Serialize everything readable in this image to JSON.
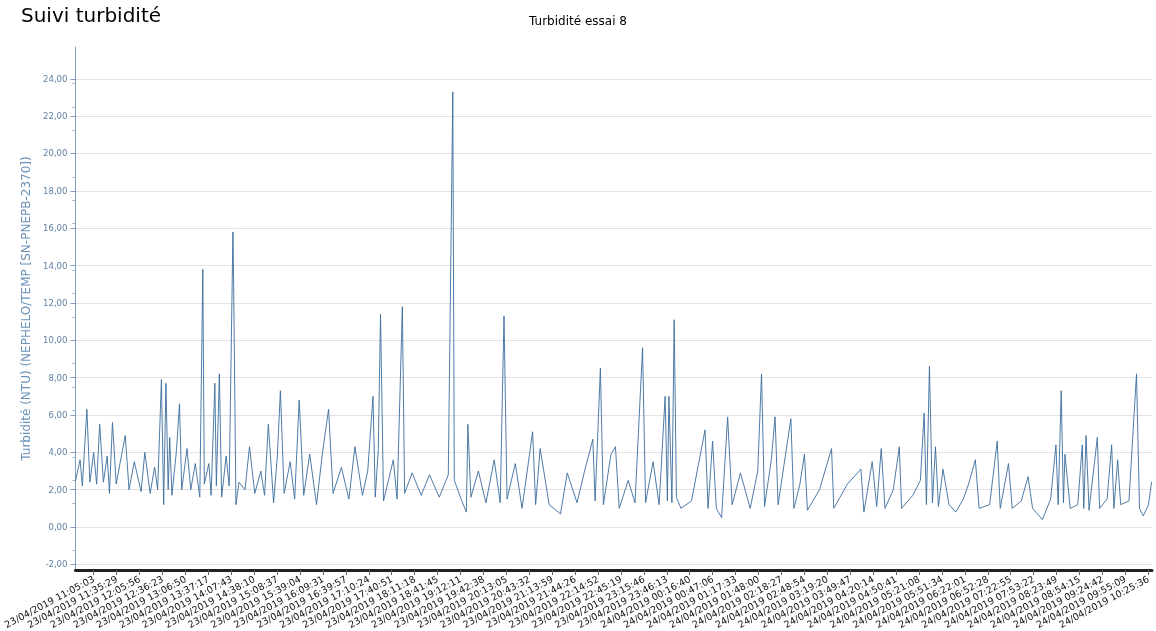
{
  "chart_data": {
    "type": "line",
    "title": "Suivi turbidité",
    "subtitle": "Turbidité essai 8",
    "ylabel": "Turbidité (NTU) (NEPHELO/TEMP [SN-PNEPB-2370])",
    "x": [
      "2019-04-23T10:41",
      "2019-04-23T10:47",
      "2019-04-23T10:50",
      "2019-04-23T10:56",
      "2019-04-23T11:00",
      "2019-04-23T11:05",
      "2019-04-23T11:09",
      "2019-04-23T11:13",
      "2019-04-23T11:18",
      "2019-04-23T11:23",
      "2019-04-23T11:26",
      "2019-04-23T11:30",
      "2019-04-23T11:35",
      "2019-04-23T11:40",
      "2019-04-23T11:47",
      "2019-04-23T11:52",
      "2019-04-23T11:59",
      "2019-04-23T12:08",
      "2019-04-23T12:13",
      "2019-04-23T12:20",
      "2019-04-23T12:26",
      "2019-04-23T12:30",
      "2019-04-23T12:35",
      "2019-04-23T12:38",
      "2019-04-23T12:41",
      "2019-04-23T12:44",
      "2019-04-23T12:46",
      "2019-04-23T12:49",
      "2019-04-23T12:55",
      "2019-04-23T12:59",
      "2019-04-23T13:02",
      "2019-04-23T13:09",
      "2019-04-23T13:14",
      "2019-04-23T13:20",
      "2019-04-23T13:26",
      "2019-04-23T13:30",
      "2019-04-23T13:32",
      "2019-04-23T13:38",
      "2019-04-23T13:41",
      "2019-04-23T13:46",
      "2019-04-23T13:48",
      "2019-04-23T13:52",
      "2019-04-23T13:55",
      "2019-04-23T14:01",
      "2019-04-23T14:05",
      "2019-04-23T14:10",
      "2019-04-23T14:11",
      "2019-04-23T14:14",
      "2019-04-23T14:18",
      "2019-04-23T14:26",
      "2019-04-23T14:32",
      "2019-04-23T14:39",
      "2019-04-23T14:47",
      "2019-04-23T14:52",
      "2019-04-23T14:57",
      "2019-04-23T15:04",
      "2019-04-23T15:09",
      "2019-04-23T15:13",
      "2019-04-23T15:18",
      "2019-04-23T15:26",
      "2019-04-23T15:32",
      "2019-04-23T15:38",
      "2019-04-23T15:44",
      "2019-04-23T15:52",
      "2019-04-23T16:01",
      "2019-04-23T16:09",
      "2019-04-23T16:17",
      "2019-04-23T16:23",
      "2019-04-23T16:34",
      "2019-04-23T16:44",
      "2019-04-23T16:52",
      "2019-04-23T17:02",
      "2019-04-23T17:09",
      "2019-04-23T17:16",
      "2019-04-23T17:19",
      "2019-04-23T17:23",
      "2019-04-23T17:26",
      "2019-04-23T17:30",
      "2019-04-23T17:43",
      "2019-04-23T17:48",
      "2019-04-23T17:55",
      "2019-04-23T17:58",
      "2019-04-23T18:08",
      "2019-04-23T18:20",
      "2019-04-23T18:31",
      "2019-04-23T18:44",
      "2019-04-23T18:56",
      "2019-04-23T19:02",
      "2019-04-23T19:04",
      "2019-04-23T19:13",
      "2019-04-23T19:20",
      "2019-04-23T19:22",
      "2019-04-23T19:26",
      "2019-04-23T19:36",
      "2019-04-23T19:46",
      "2019-04-23T19:57",
      "2019-04-23T20:05",
      "2019-04-23T20:10",
      "2019-04-23T20:14",
      "2019-04-23T20:25",
      "2019-04-23T20:34",
      "2019-04-23T20:48",
      "2019-04-23T20:52",
      "2019-04-23T20:58",
      "2019-04-23T21:10",
      "2019-04-23T21:25",
      "2019-04-23T21:34",
      "2019-04-23T21:47",
      "2019-04-23T21:57",
      "2019-04-23T22:08",
      "2019-04-23T22:11",
      "2019-04-23T22:18",
      "2019-04-23T22:22",
      "2019-04-23T22:32",
      "2019-04-23T22:38",
      "2019-04-23T22:43",
      "2019-04-23T22:55",
      "2019-04-23T23:04",
      "2019-04-23T23:14",
      "2019-04-23T23:18",
      "2019-04-23T23:28",
      "2019-04-23T23:36",
      "2019-04-23T23:44",
      "2019-04-23T23:47",
      "2019-04-23T23:49",
      "2019-04-23T23:53",
      "2019-04-23T23:56",
      "2019-04-23T23:59",
      "2019-04-24T00:05",
      "2019-04-24T00:19",
      "2019-04-24T00:37",
      "2019-04-24T00:41",
      "2019-04-24T00:47",
      "2019-04-24T00:52",
      "2019-04-24T00:59",
      "2019-04-24T01:07",
      "2019-04-24T01:13",
      "2019-04-24T01:24",
      "2019-04-24T01:37",
      "2019-04-24T01:47",
      "2019-04-24T01:52",
      "2019-04-24T01:56",
      "2019-04-24T02:05",
      "2019-04-24T02:10",
      "2019-04-24T02:14",
      "2019-04-24T02:31",
      "2019-04-24T02:35",
      "2019-04-24T02:43",
      "2019-04-24T02:49",
      "2019-04-24T02:53",
      "2019-04-24T03:09",
      "2019-04-24T03:25",
      "2019-04-24T03:28",
      "2019-04-24T03:46",
      "2019-04-24T04:04",
      "2019-04-24T04:08",
      "2019-04-24T04:19",
      "2019-04-24T04:25",
      "2019-04-24T04:31",
      "2019-04-24T04:36",
      "2019-04-24T04:47",
      "2019-04-24T04:55",
      "2019-04-24T04:58",
      "2019-04-24T05:13",
      "2019-04-24T05:23",
      "2019-04-24T05:28",
      "2019-04-24T05:31",
      "2019-04-24T05:35",
      "2019-04-24T05:39",
      "2019-04-24T05:43",
      "2019-04-24T05:47",
      "2019-04-24T05:53",
      "2019-04-24T06:01",
      "2019-04-24T06:10",
      "2019-04-24T06:20",
      "2019-04-24T06:27",
      "2019-04-24T06:36",
      "2019-04-24T06:41",
      "2019-04-24T06:55",
      "2019-04-24T07:05",
      "2019-04-24T07:09",
      "2019-04-24T07:20",
      "2019-04-24T07:25",
      "2019-04-24T07:37",
      "2019-04-24T07:46",
      "2019-04-24T07:52",
      "2019-04-24T08:05",
      "2019-04-24T08:16",
      "2019-04-24T08:23",
      "2019-04-24T08:26",
      "2019-04-24T08:30",
      "2019-04-24T08:33",
      "2019-04-24T08:35",
      "2019-04-24T08:42",
      "2019-04-24T08:52",
      "2019-04-24T08:58",
      "2019-04-24T09:00",
      "2019-04-24T09:03",
      "2019-04-24T09:07",
      "2019-04-24T09:18",
      "2019-04-24T09:21",
      "2019-04-24T09:31",
      "2019-04-24T09:37",
      "2019-04-24T09:40",
      "2019-04-24T09:45",
      "2019-04-24T09:49",
      "2019-04-24T10:00",
      "2019-04-24T10:10",
      "2019-04-24T10:14",
      "2019-04-24T10:19",
      "2019-04-24T10:26",
      "2019-04-24T10:30"
    ],
    "values": [
      2.5,
      3.6,
      2.2,
      6.3,
      2.4,
      4.0,
      2.3,
      5.5,
      2.4,
      3.8,
      1.8,
      5.6,
      2.3,
      3.4,
      4.9,
      2.0,
      3.5,
      1.9,
      4.0,
      1.8,
      3.2,
      2.0,
      7.9,
      1.2,
      7.7,
      2.0,
      4.8,
      1.7,
      4.1,
      6.6,
      2.0,
      4.2,
      2.0,
      3.4,
      1.6,
      13.8,
      2.3,
      3.4,
      1.7,
      7.7,
      2.2,
      8.2,
      1.6,
      3.8,
      2.2,
      15.8,
      12.8,
      1.2,
      2.4,
      2.0,
      4.3,
      1.8,
      3.0,
      1.7,
      5.5,
      1.3,
      3.8,
      7.3,
      1.8,
      3.5,
      1.5,
      6.8,
      1.7,
      3.9,
      1.2,
      4.0,
      6.3,
      1.8,
      3.2,
      1.5,
      4.3,
      1.7,
      3.0,
      7.0,
      1.6,
      4.1,
      11.4,
      1.4,
      3.6,
      1.5,
      11.8,
      1.8,
      2.9,
      1.7,
      2.8,
      1.6,
      2.8,
      23.3,
      2.5,
      1.5,
      0.8,
      5.5,
      1.6,
      3.0,
      1.3,
      3.6,
      1.3,
      11.3,
      1.5,
      3.4,
      1.0,
      5.1,
      1.2,
      4.2,
      1.2,
      0.7,
      2.9,
      1.3,
      3.0,
      4.7,
      1.4,
      8.5,
      1.2,
      3.9,
      4.3,
      1.0,
      2.5,
      1.3,
      9.6,
      1.3,
      3.5,
      1.2,
      7.0,
      1.4,
      7.0,
      1.3,
      11.1,
      1.6,
      1.0,
      1.4,
      5.2,
      1.0,
      4.6,
      1.0,
      0.5,
      5.9,
      1.2,
      2.9,
      1.0,
      3.0,
      8.2,
      1.1,
      3.6,
      5.9,
      1.2,
      5.8,
      1.0,
      2.3,
      3.9,
      0.9,
      2.0,
      4.2,
      1.0,
      2.3,
      3.1,
      0.8,
      3.5,
      1.1,
      4.2,
      1.0,
      2.0,
      4.3,
      1.0,
      1.7,
      2.5,
      6.1,
      1.2,
      8.6,
      1.3,
      4.3,
      1.1,
      3.1,
      1.2,
      0.8,
      1.5,
      2.3,
      3.6,
      1.0,
      1.2,
      4.6,
      1.0,
      3.4,
      1.0,
      1.4,
      2.7,
      1.0,
      0.4,
      1.5,
      4.4,
      1.2,
      7.3,
      1.3,
      3.9,
      1.0,
      1.2,
      4.4,
      1.0,
      4.9,
      0.9,
      4.8,
      1.0,
      1.5,
      4.4,
      1.0,
      3.6,
      1.2,
      1.4,
      8.2,
      1.0,
      0.6,
      1.2,
      2.4
    ],
    "color": "#3b6c9c",
    "marker": "none",
    "line_style": "solid",
    "grid": "y",
    "xlim": [
      "2019-04-23T10:40:48",
      "2019-04-24T10:30:36"
    ],
    "xticks": [
      {
        "value": "2019-04-23T11:05:03",
        "label": "23/04/2019 11:05:03"
      },
      {
        "value": "2019-04-23T11:35:29",
        "label": "23/04/2019 11:35:29"
      },
      {
        "value": "2019-04-23T12:05:56",
        "label": "23/04/2019 12:05:56"
      },
      {
        "value": "2019-04-23T12:36:23",
        "label": "23/04/2019 12:36:23"
      },
      {
        "value": "2019-04-23T13:06:50",
        "label": "23/04/2019 13:06:50"
      },
      {
        "value": "2019-04-23T13:37:17",
        "label": "23/04/2019 13:37:17"
      },
      {
        "value": "2019-04-23T14:07:43",
        "label": "23/04/2019 14:07:43"
      },
      {
        "value": "2019-04-23T14:38:10",
        "label": "23/04/2019 14:38:10"
      },
      {
        "value": "2019-04-23T15:08:37",
        "label": "23/04/2019 15:08:37"
      },
      {
        "value": "2019-04-23T15:39:04",
        "label": "23/04/2019 15:39:04"
      },
      {
        "value": "2019-04-23T16:09:31",
        "label": "23/04/2019 16:09:31"
      },
      {
        "value": "2019-04-23T16:39:57",
        "label": "23/04/2019 16:39:57"
      },
      {
        "value": "2019-04-23T17:10:24",
        "label": "23/04/2019 17:10:24"
      },
      {
        "value": "2019-04-23T17:40:51",
        "label": "23/04/2019 17:40:51"
      },
      {
        "value": "2019-04-23T18:11:18",
        "label": "23/04/2019 18:11:18"
      },
      {
        "value": "2019-04-23T18:41:45",
        "label": "23/04/2019 18:41:45"
      },
      {
        "value": "2019-04-23T19:12:11",
        "label": "23/04/2019 19:12:11"
      },
      {
        "value": "2019-04-23T19:42:38",
        "label": "23/04/2019 19:42:38"
      },
      {
        "value": "2019-04-23T20:13:05",
        "label": "23/04/2019 20:13:05"
      },
      {
        "value": "2019-04-23T20:43:32",
        "label": "23/04/2019 20:43:32"
      },
      {
        "value": "2019-04-23T21:13:59",
        "label": "23/04/2019 21:13:59"
      },
      {
        "value": "2019-04-23T21:44:26",
        "label": "23/04/2019 21:44:26"
      },
      {
        "value": "2019-04-23T22:14:52",
        "label": "23/04/2019 22:14:52"
      },
      {
        "value": "2019-04-23T22:45:19",
        "label": "23/04/2019 22:45:19"
      },
      {
        "value": "2019-04-23T23:15:46",
        "label": "23/04/2019 23:15:46"
      },
      {
        "value": "2019-04-23T23:46:13",
        "label": "23/04/2019 23:46:13"
      },
      {
        "value": "2019-04-24T00:16:40",
        "label": "24/04/2019 00:16:40"
      },
      {
        "value": "2019-04-24T00:47:06",
        "label": "24/04/2019 00:47:06"
      },
      {
        "value": "2019-04-24T01:17:33",
        "label": "24/04/2019 01:17:33"
      },
      {
        "value": "2019-04-24T01:48:00",
        "label": "24/04/2019 01:48:00"
      },
      {
        "value": "2019-04-24T02:18:27",
        "label": "24/04/2019 02:18:27"
      },
      {
        "value": "2019-04-24T02:48:54",
        "label": "24/04/2019 02:48:54"
      },
      {
        "value": "2019-04-24T03:19:20",
        "label": "24/04/2019 03:19:20"
      },
      {
        "value": "2019-04-24T03:49:47",
        "label": "24/04/2019 03:49:47"
      },
      {
        "value": "2019-04-24T04:20:14",
        "label": "24/04/2019 04:20:14"
      },
      {
        "value": "2019-04-24T04:50:41",
        "label": "24/04/2019 04:50:41"
      },
      {
        "value": "2019-04-24T05:21:08",
        "label": "24/04/2019 05:21:08"
      },
      {
        "value": "2019-04-24T05:51:34",
        "label": "24/04/2019 05:51:34"
      },
      {
        "value": "2019-04-24T06:22:01",
        "label": "24/04/2019 06:22:01"
      },
      {
        "value": "2019-04-24T06:52:28",
        "label": "24/04/2019 06:52:28"
      },
      {
        "value": "2019-04-24T07:22:55",
        "label": "24/04/2019 07:22:55"
      },
      {
        "value": "2019-04-24T07:53:22",
        "label": "24/04/2019 07:53:22"
      },
      {
        "value": "2019-04-24T08:23:49",
        "label": "24/04/2019 08:23:49"
      },
      {
        "value": "2019-04-24T08:54:15",
        "label": "24/04/2019 08:54:15"
      },
      {
        "value": "2019-04-24T09:24:42",
        "label": "24/04/2019 09:24:42"
      },
      {
        "value": "2019-04-24T09:55:09",
        "label": "24/04/2019 09:55:09"
      },
      {
        "value": "2019-04-24T10:25:36",
        "label": "24/04/2019 10:25:36"
      }
    ],
    "ylim": [
      -2.3,
      25.7
    ],
    "yticks": [
      {
        "value": -2,
        "label": "-2,00"
      },
      {
        "value": 0,
        "label": "0,00"
      },
      {
        "value": 2,
        "label": "2,00"
      },
      {
        "value": 4,
        "label": "4,00"
      },
      {
        "value": 6,
        "label": "6,00"
      },
      {
        "value": 8,
        "label": "8,00"
      },
      {
        "value": 10,
        "label": "10,00"
      },
      {
        "value": 12,
        "label": "12,00"
      },
      {
        "value": 14,
        "label": "14,00"
      },
      {
        "value": 16,
        "label": "16,00"
      },
      {
        "value": 18,
        "label": "18,00"
      },
      {
        "value": 20,
        "label": "20,00"
      },
      {
        "value": 22,
        "label": "22,00"
      },
      {
        "value": 24,
        "label": "24,00"
      }
    ]
  }
}
